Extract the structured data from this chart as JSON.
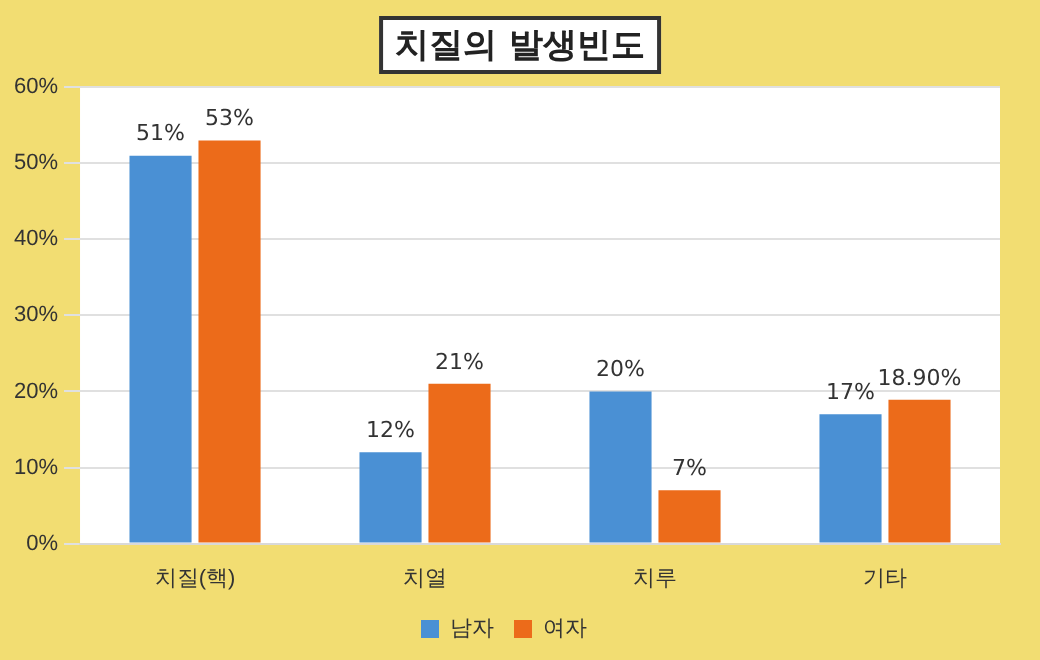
{
  "chart_data": {
    "type": "bar",
    "title": "치질의 발생빈도",
    "categories": [
      "치질(핵)",
      "치열",
      "치루",
      "기타"
    ],
    "series": [
      {
        "name": "남자",
        "color": "#4a90d4",
        "values": [
          51,
          12,
          20,
          17
        ],
        "value_labels": [
          "51%",
          "12%",
          "20%",
          "17%"
        ]
      },
      {
        "name": "여자",
        "color": "#ec6b1a",
        "values": [
          53,
          21,
          7,
          18.9
        ],
        "value_labels": [
          "53%",
          "21%",
          "7%",
          "18.90%"
        ]
      }
    ],
    "ylim": [
      0,
      60
    ],
    "yticks": [
      {
        "value": 0,
        "label": "0%"
      },
      {
        "value": 10,
        "label": "10%"
      },
      {
        "value": 20,
        "label": "20%"
      },
      {
        "value": 30,
        "label": "30%"
      },
      {
        "value": 40,
        "label": "40%"
      },
      {
        "value": 50,
        "label": "50%"
      },
      {
        "value": 60,
        "label": "60%"
      }
    ],
    "grid": "y",
    "legend": "bottom"
  }
}
